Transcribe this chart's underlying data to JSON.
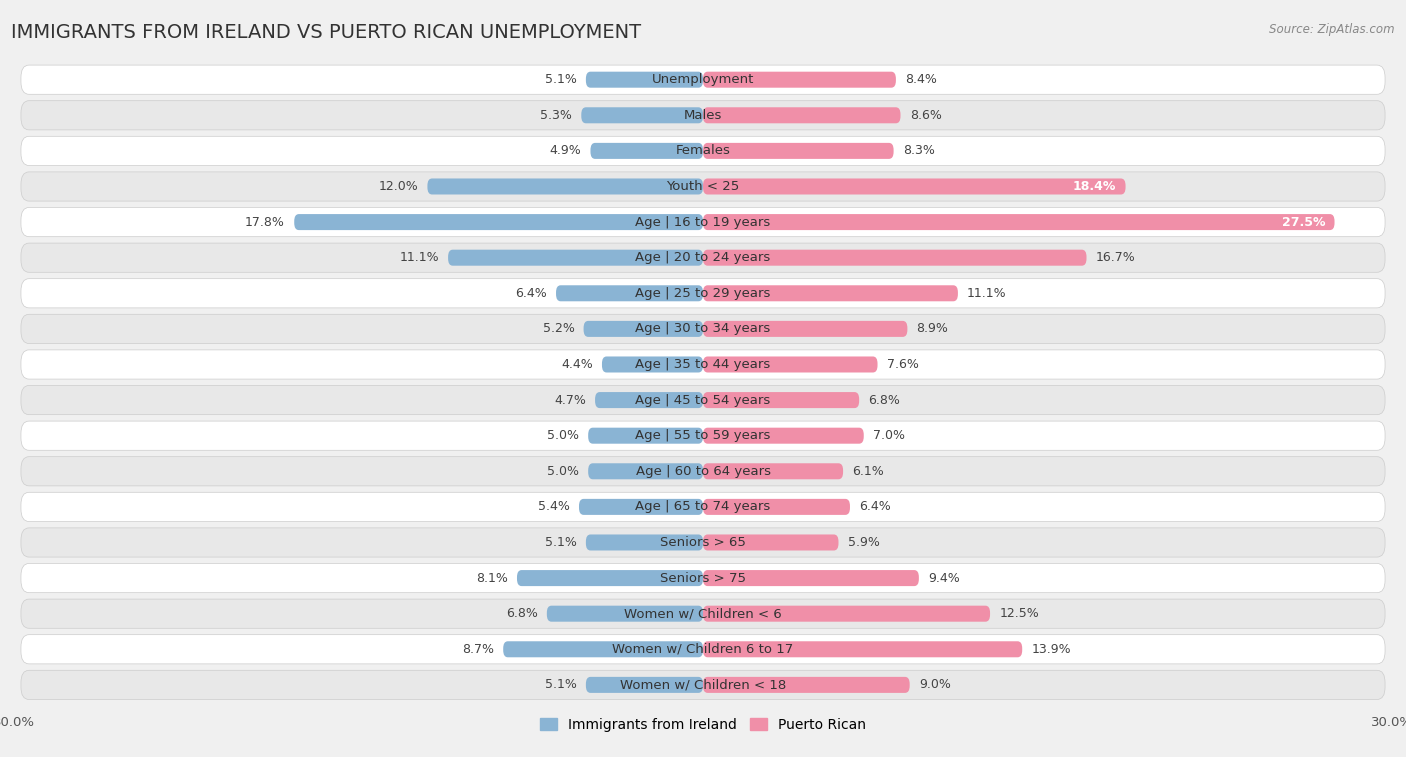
{
  "title": "IMMIGRANTS FROM IRELAND VS PUERTO RICAN UNEMPLOYMENT",
  "source": "Source: ZipAtlas.com",
  "categories": [
    "Unemployment",
    "Males",
    "Females",
    "Youth < 25",
    "Age | 16 to 19 years",
    "Age | 20 to 24 years",
    "Age | 25 to 29 years",
    "Age | 30 to 34 years",
    "Age | 35 to 44 years",
    "Age | 45 to 54 years",
    "Age | 55 to 59 years",
    "Age | 60 to 64 years",
    "Age | 65 to 74 years",
    "Seniors > 65",
    "Seniors > 75",
    "Women w/ Children < 6",
    "Women w/ Children 6 to 17",
    "Women w/ Children < 18"
  ],
  "ireland_values": [
    5.1,
    5.3,
    4.9,
    12.0,
    17.8,
    11.1,
    6.4,
    5.2,
    4.4,
    4.7,
    5.0,
    5.0,
    5.4,
    5.1,
    8.1,
    6.8,
    8.7,
    5.1
  ],
  "puerto_rican_values": [
    8.4,
    8.6,
    8.3,
    18.4,
    27.5,
    16.7,
    11.1,
    8.9,
    7.6,
    6.8,
    7.0,
    6.1,
    6.4,
    5.9,
    9.4,
    12.5,
    13.9,
    9.0
  ],
  "ireland_color": "#8ab4d4",
  "puerto_rican_color": "#f08fa8",
  "ireland_color_dark": "#6090b8",
  "puerto_rican_color_dark": "#e06080",
  "xlim": 30.0,
  "bg_color": "#f0f0f0",
  "row_bg_light": "#ffffff",
  "row_bg_dark": "#e8e8e8",
  "row_border": "#cccccc",
  "title_fontsize": 14,
  "label_fontsize": 9.5,
  "value_fontsize": 9,
  "legend_fontsize": 10
}
